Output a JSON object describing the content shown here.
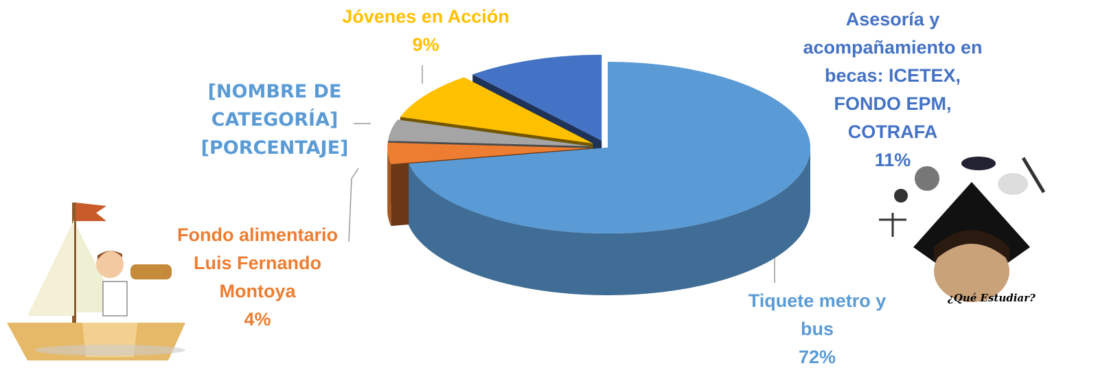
{
  "chart_data": {
    "type": "pie",
    "categories": [
      "Tiquete metro y bus",
      "Fondo alimentario Luis Fernando Montoya",
      "[NOMBRE DE CATEGORÍA]",
      "Jóvenes en Acción",
      "Asesoría y acompañamiento en becas: ICETEX, FONDO EPM, COTRAFA"
    ],
    "values": [
      72,
      4,
      4,
      9,
      11
    ],
    "value_labels": [
      "72%",
      "4%",
      "[PORCENTAJE]",
      "9%",
      "11%"
    ],
    "colors": [
      "#5b9bd5",
      "#ed7d31",
      "#a5a5a5",
      "#ffc000",
      "#4472c4"
    ],
    "label_colors": [
      "#5b9bd5",
      "#ed7d31",
      "#5b9bd5",
      "#ffc000",
      "#4472c4"
    ]
  },
  "illustration_caption": "¿Qué Estudiar?"
}
